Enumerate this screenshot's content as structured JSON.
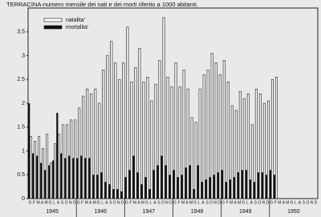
{
  "chart_data": {
    "type": "bar",
    "title": "TERRACINA-numero mensile dei nati e dei morti riferito a 1000 abitanti.",
    "categories": [
      "G",
      "F",
      "M",
      "A",
      "M",
      "G",
      "L",
      "A",
      "S",
      "O",
      "N",
      "D",
      "G",
      "F",
      "M",
      "A",
      "M",
      "G",
      "L",
      "A",
      "S",
      "O",
      "N",
      "D",
      "G",
      "F",
      "M",
      "A",
      "M",
      "G",
      "L",
      "A",
      "S",
      "O",
      "N",
      "D",
      "G",
      "F",
      "M",
      "A",
      "M",
      "G",
      "L",
      "A",
      "S",
      "O",
      "N",
      "D",
      "G",
      "F",
      "M",
      "A",
      "M",
      "G",
      "L",
      "A",
      "S",
      "O",
      "N",
      "D",
      "G",
      "F",
      "M",
      "A",
      "M",
      "G",
      "L",
      "A",
      "S",
      "O",
      "N",
      "D"
    ],
    "years": [
      "1945",
      "1946",
      "1947",
      "1948",
      "1949",
      "1950"
    ],
    "series": [
      {
        "name": "natalita'",
        "color": "#ffffff",
        "values": [
          1.3,
          1.2,
          1.3,
          1.05,
          1.35,
          0.75,
          1.15,
          1.35,
          1.55,
          1.55,
          1.65,
          1.65,
          1.9,
          2.15,
          2.3,
          2.2,
          2.3,
          2.0,
          2.7,
          3.0,
          3.3,
          2.85,
          2.5,
          2.85,
          3.6,
          2.45,
          2.75,
          3.15,
          2.45,
          2.55,
          2.05,
          2.4,
          2.9,
          3.8,
          2.55,
          2.35,
          2.85,
          2.35,
          2.7,
          2.3,
          1.7,
          1.6,
          2.3,
          2.6,
          2.7,
          3.05,
          2.85,
          2.6,
          2.9,
          2.45,
          1.95,
          1.85,
          2.25,
          2.1,
          2.2,
          1.55,
          2.3,
          2.2,
          2.0,
          2.05,
          2.5,
          2.55,
          null,
          null,
          null,
          null,
          null,
          null,
          null,
          null,
          null,
          null
        ]
      },
      {
        "name": "mortalita'",
        "color": "#111111",
        "values": [
          2.0,
          0.95,
          0.9,
          0.75,
          0.6,
          0.7,
          0.8,
          1.8,
          0.95,
          0.85,
          0.9,
          0.85,
          0.85,
          0.9,
          0.85,
          0.85,
          0.5,
          0.5,
          0.55,
          0.35,
          0.3,
          0.2,
          0.2,
          0.15,
          0.45,
          0.6,
          0.9,
          0.55,
          0.3,
          0.45,
          0.2,
          0.6,
          0.7,
          0.9,
          0.7,
          0.5,
          0.6,
          0.45,
          0.5,
          0.65,
          0.7,
          0.2,
          0.7,
          0.35,
          0.4,
          0.45,
          0.5,
          0.55,
          0.6,
          0.35,
          0.4,
          0.45,
          0.55,
          0.6,
          0.6,
          0.4,
          0.35,
          0.55,
          0.55,
          0.5,
          0.6,
          0.5,
          null,
          null,
          null,
          null,
          null,
          null,
          null,
          null,
          null,
          null
        ]
      }
    ],
    "ylim": [
      0,
      4
    ],
    "yticks": [
      0,
      0.5,
      1,
      1.5,
      2,
      2.5,
      3,
      3.5
    ]
  }
}
